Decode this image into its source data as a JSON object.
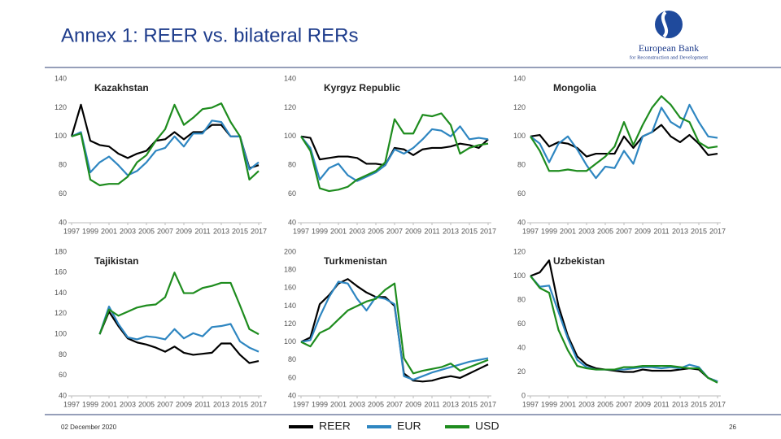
{
  "header": {
    "title": "Annex 1: REER vs. bilateral RERs",
    "logo_name": "European Bank",
    "logo_subtitle": "for Reconstruction and Development"
  },
  "footer": {
    "date": "02 December 2020",
    "page": "26"
  },
  "legend": [
    {
      "name": "REER",
      "color": "#000000"
    },
    {
      "name": "EUR",
      "color": "#2e86c1"
    },
    {
      "name": "USD",
      "color": "#1e8c1e"
    }
  ],
  "chart_data": [
    {
      "type": "line",
      "title": "Kazakhstan",
      "x": [
        1997,
        1998,
        1999,
        2000,
        2001,
        2002,
        2003,
        2004,
        2005,
        2006,
        2007,
        2008,
        2009,
        2010,
        2011,
        2012,
        2013,
        2014,
        2015,
        2016,
        2017
      ],
      "xlim": [
        1997,
        2017
      ],
      "xticks": [
        1997,
        1999,
        2001,
        2003,
        2005,
        2007,
        2009,
        2011,
        2013,
        2015,
        2017
      ],
      "ylim": [
        40,
        140
      ],
      "yticks": [
        40,
        60,
        80,
        100,
        120,
        140
      ],
      "series": [
        {
          "values": [
            100,
            122,
            97,
            94,
            93,
            88,
            85,
            88,
            90,
            97,
            98,
            103,
            98,
            103,
            103,
            108,
            108,
            100,
            100,
            78,
            80
          ]
        },
        {
          "values": [
            100,
            103,
            75,
            82,
            86,
            80,
            73,
            76,
            82,
            90,
            92,
            100,
            93,
            102,
            102,
            111,
            110,
            100,
            100,
            77,
            82
          ]
        },
        {
          "values": [
            100,
            102,
            70,
            66,
            67,
            67,
            72,
            82,
            87,
            97,
            105,
            122,
            108,
            113,
            119,
            120,
            123,
            110,
            100,
            70,
            76
          ]
        }
      ]
    },
    {
      "type": "line",
      "title": "Kyrgyz Republic",
      "x": [
        1997,
        1998,
        1999,
        2000,
        2001,
        2002,
        2003,
        2004,
        2005,
        2006,
        2007,
        2008,
        2009,
        2010,
        2011,
        2012,
        2013,
        2014,
        2015,
        2016,
        2017
      ],
      "xlim": [
        1997,
        2017
      ],
      "xticks": [
        1997,
        1999,
        2001,
        2003,
        2005,
        2007,
        2009,
        2011,
        2013,
        2015,
        2017
      ],
      "ylim": [
        40,
        140
      ],
      "yticks": [
        40,
        60,
        80,
        100,
        120,
        140
      ],
      "series": [
        {
          "values": [
            100,
            99,
            84,
            85,
            86,
            86,
            85,
            81,
            81,
            80,
            92,
            91,
            87,
            91,
            92,
            92,
            93,
            95,
            94,
            92,
            98
          ]
        },
        {
          "values": [
            100,
            92,
            70,
            78,
            81,
            73,
            69,
            72,
            75,
            80,
            91,
            88,
            92,
            98,
            105,
            104,
            100,
            107,
            98,
            99,
            98
          ]
        },
        {
          "values": [
            100,
            90,
            64,
            62,
            63,
            65,
            70,
            73,
            76,
            82,
            112,
            102,
            102,
            115,
            114,
            116,
            108,
            88,
            92,
            94,
            95
          ]
        }
      ]
    },
    {
      "type": "line",
      "title": "Mongolia",
      "x": [
        1997,
        1998,
        1999,
        2000,
        2001,
        2002,
        2003,
        2004,
        2005,
        2006,
        2007,
        2008,
        2009,
        2010,
        2011,
        2012,
        2013,
        2014,
        2015,
        2016,
        2017
      ],
      "xlim": [
        1997,
        2017
      ],
      "xticks": [
        1997,
        1999,
        2001,
        2003,
        2005,
        2007,
        2009,
        2011,
        2013,
        2015,
        2017
      ],
      "ylim": [
        40,
        140
      ],
      "yticks": [
        40,
        60,
        80,
        100,
        120,
        140
      ],
      "series": [
        {
          "values": [
            100,
            101,
            93,
            96,
            95,
            92,
            86,
            88,
            88,
            88,
            100,
            92,
            100,
            103,
            108,
            100,
            96,
            101,
            95,
            87,
            88
          ]
        },
        {
          "values": [
            100,
            95,
            82,
            95,
            100,
            91,
            80,
            71,
            79,
            78,
            90,
            81,
            100,
            103,
            120,
            110,
            106,
            122,
            110,
            100,
            99
          ]
        },
        {
          "values": [
            100,
            90,
            76,
            76,
            77,
            76,
            76,
            81,
            86,
            93,
            110,
            94,
            108,
            120,
            128,
            122,
            113,
            110,
            96,
            92,
            93
          ]
        }
      ]
    },
    {
      "type": "line",
      "title": "Tajikistan",
      "x": [
        1997,
        1998,
        1999,
        2000,
        2001,
        2002,
        2003,
        2004,
        2005,
        2006,
        2007,
        2008,
        2009,
        2010,
        2011,
        2012,
        2013,
        2014,
        2015,
        2016,
        2017
      ],
      "xlim": [
        1997,
        2017
      ],
      "xticks": [
        1997,
        1999,
        2001,
        2003,
        2005,
        2007,
        2009,
        2011,
        2013,
        2015,
        2017
      ],
      "ylim": [
        40,
        180
      ],
      "yticks": [
        40,
        60,
        80,
        100,
        120,
        140,
        160,
        180
      ],
      "series": [
        {
          "values": [
            null,
            null,
            null,
            100,
            122,
            108,
            96,
            92,
            90,
            87,
            83,
            88,
            82,
            80,
            81,
            82,
            91,
            91,
            80,
            72,
            74
          ]
        },
        {
          "values": [
            null,
            null,
            null,
            100,
            127,
            110,
            97,
            95,
            98,
            97,
            95,
            105,
            96,
            101,
            98,
            107,
            108,
            110,
            93,
            87,
            83
          ]
        },
        {
          "values": [
            null,
            null,
            null,
            100,
            124,
            118,
            122,
            126,
            128,
            129,
            136,
            160,
            140,
            140,
            145,
            147,
            150,
            150,
            128,
            105,
            100
          ]
        }
      ]
    },
    {
      "type": "line",
      "title": "Turkmenistan",
      "x": [
        1997,
        1998,
        1999,
        2000,
        2001,
        2002,
        2003,
        2004,
        2005,
        2006,
        2007,
        2008,
        2009,
        2010,
        2011,
        2012,
        2013,
        2014,
        2015,
        2016,
        2017
      ],
      "xlim": [
        1997,
        2017
      ],
      "xticks": [
        1997,
        1999,
        2001,
        2003,
        2005,
        2007,
        2009,
        2011,
        2013,
        2015,
        2017
      ],
      "ylim": [
        40,
        200
      ],
      "yticks": [
        40,
        60,
        80,
        100,
        120,
        140,
        160,
        180,
        200
      ],
      "series": [
        {
          "values": [
            100,
            105,
            142,
            152,
            165,
            170,
            162,
            155,
            150,
            150,
            140,
            65,
            57,
            56,
            57,
            60,
            62,
            60,
            65,
            70,
            75
          ]
        },
        {
          "values": [
            100,
            102,
            128,
            150,
            167,
            165,
            148,
            135,
            150,
            148,
            142,
            62,
            58,
            62,
            66,
            69,
            72,
            75,
            78,
            80,
            82
          ]
        },
        {
          "values": [
            100,
            95,
            110,
            115,
            125,
            135,
            140,
            145,
            148,
            158,
            165,
            82,
            65,
            68,
            70,
            72,
            76,
            68,
            72,
            76,
            80
          ]
        }
      ]
    },
    {
      "type": "line",
      "title": "Uzbekistan",
      "x": [
        1997,
        1998,
        1999,
        2000,
        2001,
        2002,
        2003,
        2004,
        2005,
        2006,
        2007,
        2008,
        2009,
        2010,
        2011,
        2012,
        2013,
        2014,
        2015,
        2016,
        2017
      ],
      "xlim": [
        1997,
        2017
      ],
      "xticks": [
        1997,
        1999,
        2001,
        2003,
        2005,
        2007,
        2009,
        2011,
        2013,
        2015,
        2017
      ],
      "ylim": [
        0,
        120
      ],
      "yticks": [
        0,
        20,
        40,
        60,
        80,
        100,
        120
      ],
      "series": [
        {
          "values": [
            100,
            103,
            113,
            75,
            50,
            33,
            26,
            23,
            22,
            21,
            20,
            20,
            22,
            21,
            21,
            21,
            22,
            23,
            22,
            15,
            12
          ]
        },
        {
          "values": [
            100,
            91,
            92,
            70,
            48,
            30,
            24,
            22,
            22,
            22,
            22,
            23,
            24,
            24,
            23,
            24,
            23,
            26,
            24,
            15,
            12
          ]
        },
        {
          "values": [
            100,
            90,
            86,
            55,
            38,
            25,
            23,
            22,
            22,
            22,
            24,
            24,
            25,
            25,
            25,
            25,
            24,
            23,
            23,
            15,
            11
          ]
        }
      ]
    }
  ]
}
